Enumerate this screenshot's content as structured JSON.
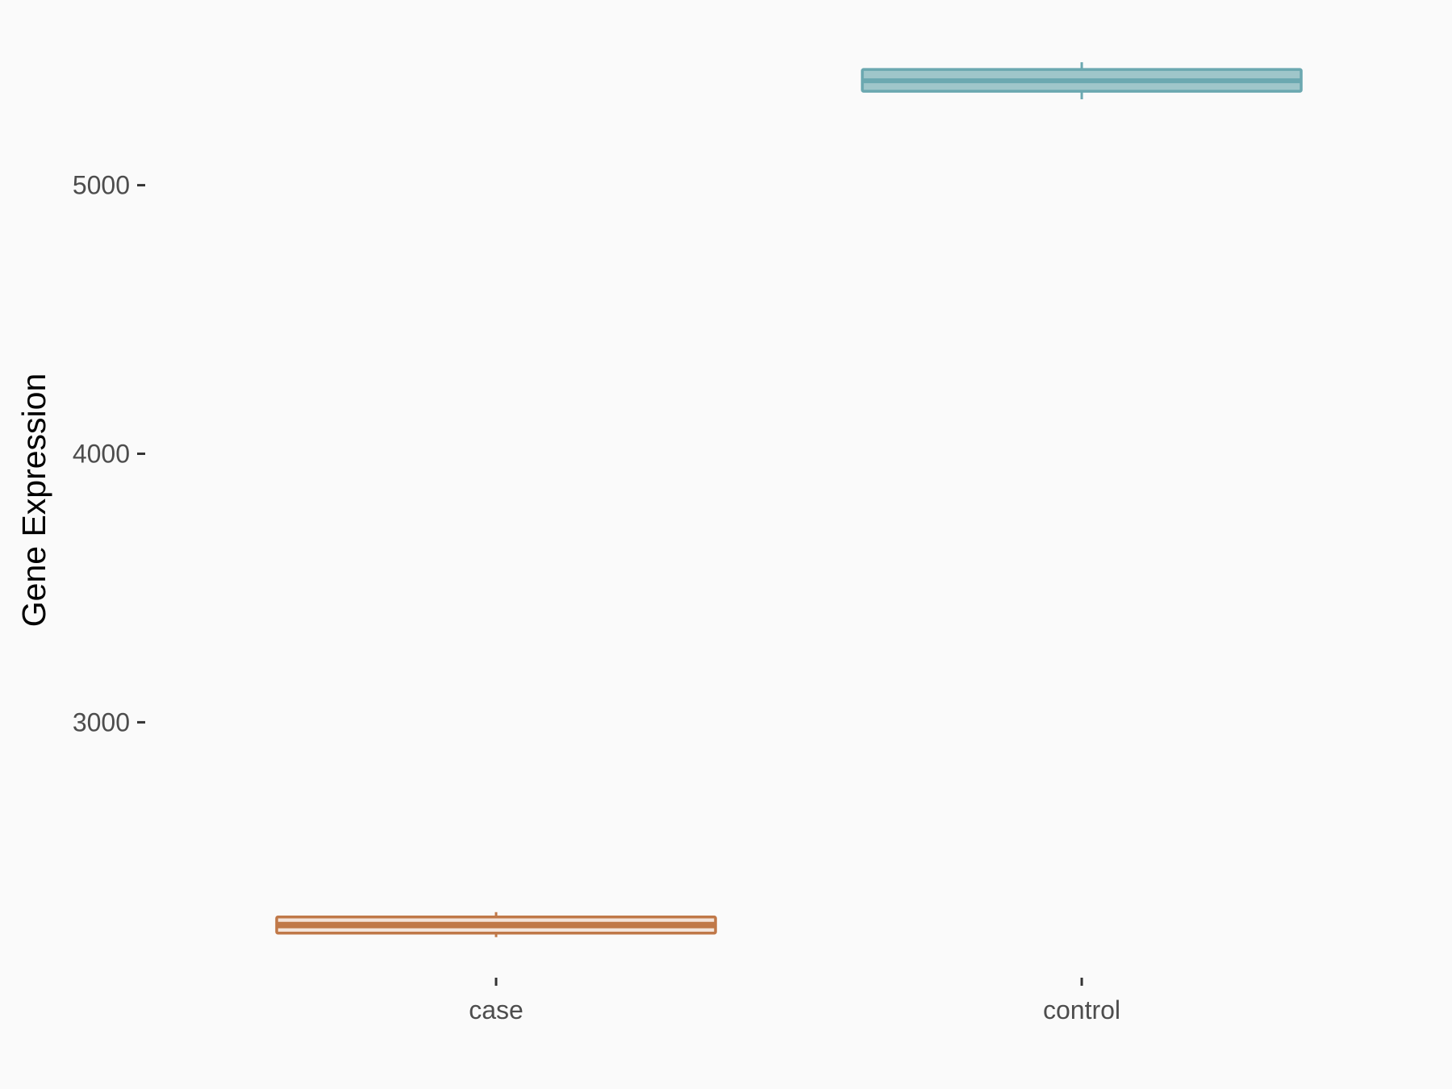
{
  "chart_data": {
    "type": "boxplot",
    "title": "",
    "xlabel": "",
    "ylabel": "Gene Expression",
    "categories": [
      "case",
      "control"
    ],
    "y_ticks": [
      3000,
      4000,
      5000
    ],
    "y_tick_labels": [
      "3000",
      "4000",
      "5000"
    ],
    "ylim": [
      2060,
      5550
    ],
    "grid": false,
    "legend": "none",
    "series": [
      {
        "category": "case",
        "whisker_low": 2200,
        "q1": 2215,
        "median": 2245,
        "q3": 2275,
        "whisker_high": 2293,
        "stroke": "#c07848",
        "fill": "#f3e4da"
      },
      {
        "category": "control",
        "whisker_low": 5320,
        "q1": 5350,
        "median": 5389,
        "q3": 5431,
        "whisker_high": 5458,
        "stroke": "#6ba8b0",
        "fill": "#9fc6ca"
      }
    ],
    "background": "#fafafa"
  }
}
